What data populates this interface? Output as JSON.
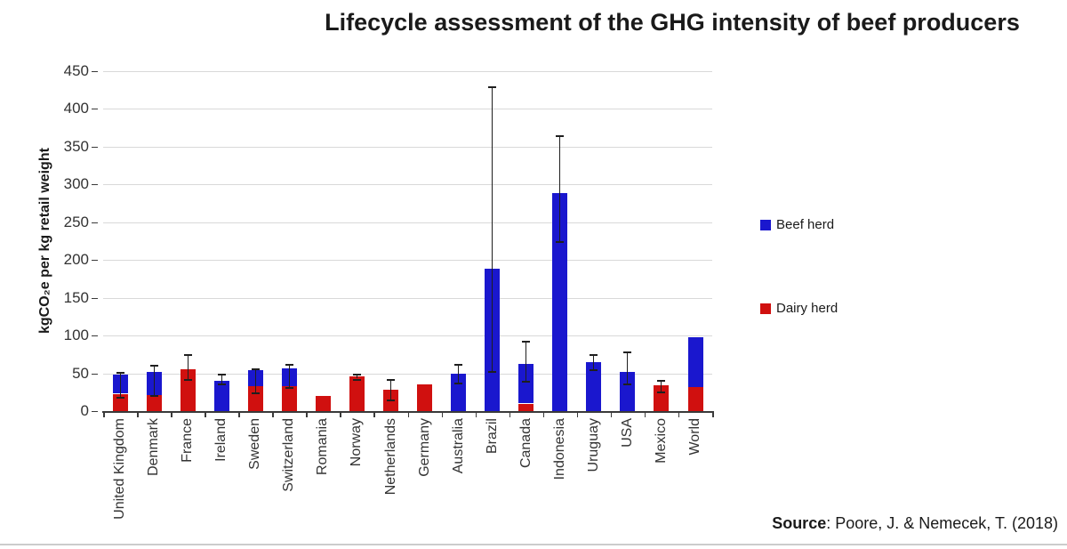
{
  "source": {
    "label": "Source",
    "rest": ": Poore, J. & Nemecek, T. (2018)"
  },
  "chart_data": {
    "type": "bar",
    "stacked": true,
    "title": "Lifecycle assessment of the GHG intensity of beef producers",
    "xlabel": "",
    "ylabel": "kgCO₂e per kg retail weight",
    "ylim": [
      0,
      450
    ],
    "ytick_step": 50,
    "grid": true,
    "legend_position": "right",
    "categories": [
      "United Kingdom",
      "Denmark",
      "France",
      "Ireland",
      "Sweden",
      "Switzerland",
      "Romania",
      "Norway",
      "Netherlands",
      "Germany",
      "Australia",
      "Brazil",
      "Canada",
      "Indonesia",
      "Uruguay",
      "USA",
      "Mexico",
      "World"
    ],
    "series": [
      {
        "name": "Dairy herd",
        "color": "#d0100f",
        "values": [
          23,
          21,
          55,
          0,
          33,
          33,
          20,
          46,
          28,
          35,
          0,
          0,
          10,
          0,
          0,
          0,
          34,
          32
        ]
      },
      {
        "name": "Beef herd",
        "color": "#1a17ce",
        "values": [
          25,
          31,
          0,
          40,
          21,
          24,
          0,
          0,
          0,
          0,
          50,
          188,
          52,
          289,
          65,
          52,
          0,
          66
        ]
      }
    ],
    "error_bars": {
      "low": [
        19,
        21,
        42,
        37,
        25,
        32,
        null,
        43,
        15,
        null,
        38,
        53,
        40,
        225,
        55,
        36,
        26,
        null
      ],
      "high": [
        52,
        61,
        76,
        49,
        57,
        62,
        null,
        49,
        42,
        null,
        62,
        430,
        93,
        365,
        75,
        79,
        41,
        null
      ]
    }
  }
}
